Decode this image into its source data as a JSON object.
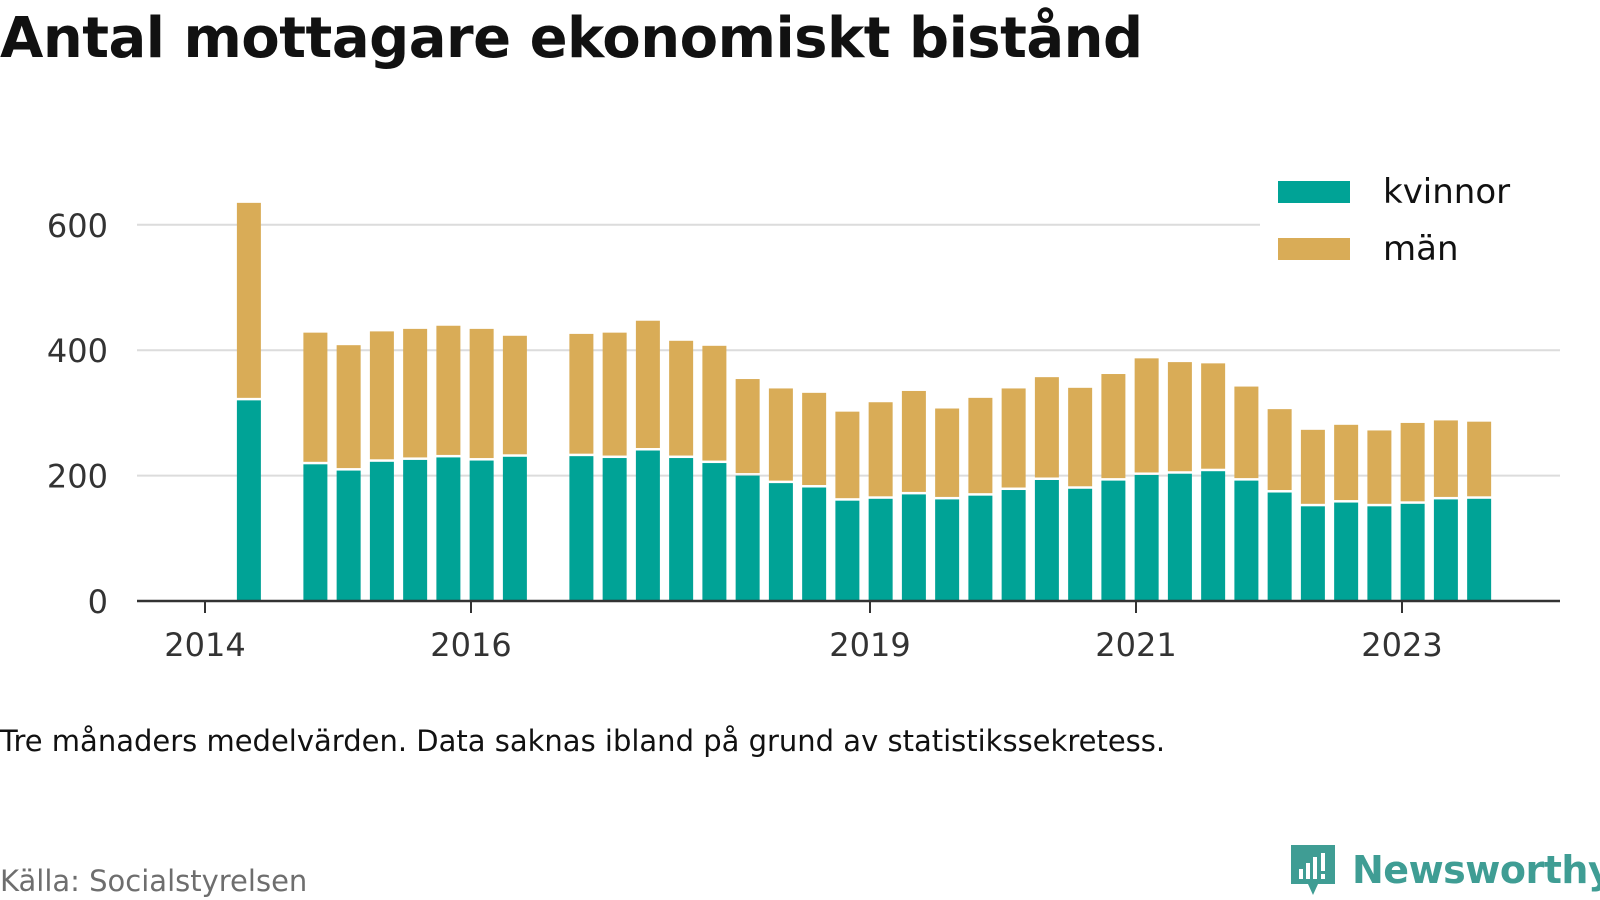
{
  "header": {
    "title": "Antal mottagare ekonomiskt bistånd"
  },
  "footer": {
    "note": "Tre månaders medelvärden. Data saknas ibland på grund av statistikssekretess.",
    "source": "Källa: Socialstyrelsen",
    "brand": "Newsworthy",
    "brand_color": "#3f9d94",
    "brand_icon": "bar-chart-logo-icon"
  },
  "chart_data": {
    "type": "bar",
    "stacked": true,
    "title": "Antal mottagare ekonomiskt bistånd",
    "xlabel": "",
    "ylabel": "",
    "ylim": [
      0,
      650
    ],
    "yticks": [
      0,
      200,
      400,
      600
    ],
    "x_tick_labels": [
      {
        "label": "2014",
        "x": 2014.0
      },
      {
        "label": "2016",
        "x": 2016.0
      },
      {
        "label": "2019",
        "x": 2019.0
      },
      {
        "label": "2021",
        "x": 2021.0
      },
      {
        "label": "2023",
        "x": 2023.0
      }
    ],
    "xlim": [
      2013.5,
      2024.2
    ],
    "grid": "horizontal",
    "legend_position": "top-right",
    "x": [
      2014.33,
      2014.83,
      2015.08,
      2015.33,
      2015.58,
      2015.83,
      2016.08,
      2016.33,
      2016.83,
      2017.08,
      2017.33,
      2017.58,
      2017.83,
      2018.08,
      2018.33,
      2018.58,
      2018.83,
      2019.08,
      2019.33,
      2019.58,
      2019.83,
      2020.08,
      2020.33,
      2020.58,
      2020.83,
      2021.08,
      2021.33,
      2021.58,
      2021.83,
      2022.08,
      2022.33,
      2022.58,
      2022.83,
      2023.08,
      2023.33,
      2023.58
    ],
    "series": [
      {
        "name": "kvinnor",
        "color": "#00a396",
        "values": [
          320,
          218,
          208,
          222,
          225,
          229,
          224,
          230,
          231,
          228,
          240,
          228,
          220,
          200,
          188,
          181,
          160,
          163,
          170,
          162,
          168,
          177,
          193,
          179,
          192,
          201,
          203,
          207,
          192,
          173,
          151,
          157,
          151,
          155,
          162,
          163
        ]
      },
      {
        "name": "män",
        "color": "#d9ac57",
        "values": [
          315,
          210,
          200,
          208,
          209,
          210,
          210,
          193,
          195,
          200,
          207,
          187,
          187,
          154,
          151,
          151,
          142,
          154,
          165,
          145,
          156,
          162,
          164,
          161,
          170,
          186,
          178,
          172,
          150,
          133,
          122,
          124,
          121,
          129,
          126,
          123
        ]
      }
    ]
  }
}
